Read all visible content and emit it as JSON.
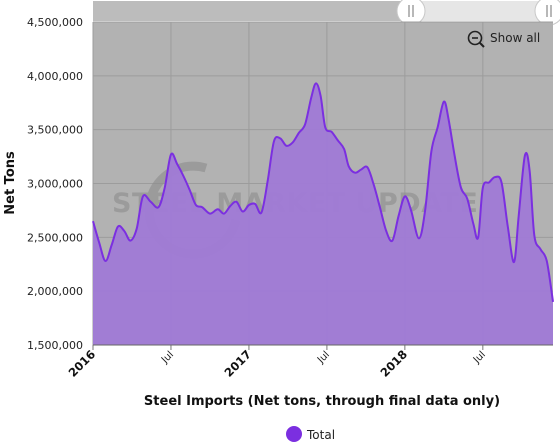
{
  "colors": {
    "series_line": "#7b2fe0",
    "series_fill": "#a07ad6",
    "plot_bg": "#b2b2b2",
    "grid": "#999999",
    "navigator_bg": "#e6e6e6",
    "watermark": "#8a8a8a"
  },
  "watermark_text": "STEEL MARKET UPDATE",
  "zoom_control": {
    "label": "Show all",
    "icon": "zoom-out-icon"
  },
  "chart_data": {
    "type": "area",
    "title": "",
    "xlabel": "Steel Imports (Net tons, through final data only)",
    "ylabel": "Net Tons",
    "ylim": [
      1500000,
      4500000
    ],
    "yticks": [
      "1,500,000",
      "2,000,000",
      "2,500,000",
      "3,000,000",
      "3,500,000",
      "4,000,000",
      "4,500,000"
    ],
    "xlim": [
      2016.0,
      2018.95
    ],
    "xticks": [
      {
        "x": 2016.0,
        "label": "2016",
        "kind": "year"
      },
      {
        "x": 2016.5,
        "label": "Jul",
        "kind": "month"
      },
      {
        "x": 2017.0,
        "label": "2017",
        "kind": "year"
      },
      {
        "x": 2017.5,
        "label": "Jul",
        "kind": "month"
      },
      {
        "x": 2018.0,
        "label": "2018",
        "kind": "year"
      },
      {
        "x": 2018.5,
        "label": "Jul",
        "kind": "month"
      }
    ],
    "grid": true,
    "legend": "bottom-center",
    "series": [
      {
        "name": "Total",
        "points": [
          [
            2016.0,
            2650000
          ],
          [
            2016.04,
            2450000
          ],
          [
            2016.08,
            2280000
          ],
          [
            2016.12,
            2430000
          ],
          [
            2016.16,
            2600000
          ],
          [
            2016.2,
            2560000
          ],
          [
            2016.24,
            2470000
          ],
          [
            2016.28,
            2580000
          ],
          [
            2016.32,
            2880000
          ],
          [
            2016.37,
            2830000
          ],
          [
            2016.42,
            2780000
          ],
          [
            2016.46,
            2960000
          ],
          [
            2016.5,
            3270000
          ],
          [
            2016.54,
            3180000
          ],
          [
            2016.58,
            3070000
          ],
          [
            2016.62,
            2940000
          ],
          [
            2016.66,
            2800000
          ],
          [
            2016.7,
            2780000
          ],
          [
            2016.75,
            2720000
          ],
          [
            2016.8,
            2760000
          ],
          [
            2016.84,
            2720000
          ],
          [
            2016.88,
            2790000
          ],
          [
            2016.92,
            2830000
          ],
          [
            2016.96,
            2740000
          ],
          [
            2017.0,
            2800000
          ],
          [
            2017.04,
            2810000
          ],
          [
            2017.08,
            2730000
          ],
          [
            2017.12,
            3020000
          ],
          [
            2017.16,
            3390000
          ],
          [
            2017.2,
            3420000
          ],
          [
            2017.24,
            3350000
          ],
          [
            2017.28,
            3380000
          ],
          [
            2017.32,
            3470000
          ],
          [
            2017.36,
            3550000
          ],
          [
            2017.4,
            3800000
          ],
          [
            2017.43,
            3930000
          ],
          [
            2017.46,
            3810000
          ],
          [
            2017.49,
            3520000
          ],
          [
            2017.53,
            3480000
          ],
          [
            2017.57,
            3400000
          ],
          [
            2017.61,
            3320000
          ],
          [
            2017.64,
            3160000
          ],
          [
            2017.68,
            3100000
          ],
          [
            2017.72,
            3130000
          ],
          [
            2017.76,
            3150000
          ],
          [
            2017.8,
            2990000
          ],
          [
            2017.84,
            2780000
          ],
          [
            2017.88,
            2560000
          ],
          [
            2017.92,
            2470000
          ],
          [
            2017.96,
            2700000
          ],
          [
            2018.0,
            2880000
          ],
          [
            2018.04,
            2750000
          ],
          [
            2018.09,
            2490000
          ],
          [
            2018.13,
            2750000
          ],
          [
            2018.17,
            3300000
          ],
          [
            2018.21,
            3520000
          ],
          [
            2018.25,
            3760000
          ],
          [
            2018.28,
            3600000
          ],
          [
            2018.32,
            3250000
          ],
          [
            2018.36,
            2960000
          ],
          [
            2018.4,
            2860000
          ],
          [
            2018.44,
            2620000
          ],
          [
            2018.47,
            2500000
          ],
          [
            2018.5,
            2960000
          ],
          [
            2018.54,
            3010000
          ],
          [
            2018.58,
            3060000
          ],
          [
            2018.62,
            3010000
          ],
          [
            2018.66,
            2600000
          ],
          [
            2018.7,
            2270000
          ],
          [
            2018.73,
            2700000
          ],
          [
            2018.77,
            3260000
          ],
          [
            2018.8,
            3120000
          ],
          [
            2018.83,
            2520000
          ],
          [
            2018.87,
            2390000
          ],
          [
            2018.91,
            2280000
          ],
          [
            2018.95,
            1900000
          ]
        ]
      }
    ]
  }
}
